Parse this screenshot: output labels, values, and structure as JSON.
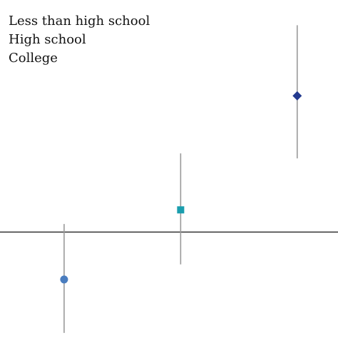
{
  "chart_data": {
    "type": "scatter",
    "title": "",
    "xlabel": "",
    "ylabel": "",
    "reference_line": 0,
    "legend": {
      "placement": "top-left",
      "entries": [
        "Less than high school",
        "High school",
        "College"
      ]
    },
    "series": [
      {
        "marker": "circle",
        "color": "#4a7dbf",
        "x": 1,
        "estimate": -0.47,
        "ci": [
          -1.0,
          0.08
        ]
      },
      {
        "marker": "square",
        "color": "#1a9eae",
        "x": 2,
        "estimate": 0.22,
        "ci": [
          -0.32,
          0.78
        ]
      },
      {
        "marker": "diamond",
        "color": "#233a8f",
        "x": 3,
        "estimate": 1.35,
        "ci": [
          0.73,
          2.05
        ]
      }
    ],
    "xlim": [
      0.45,
      3.35
    ],
    "ylim": [
      -1.05,
      2.3
    ],
    "axis_color": "#222222",
    "ci_color": "#9a9a9a"
  }
}
